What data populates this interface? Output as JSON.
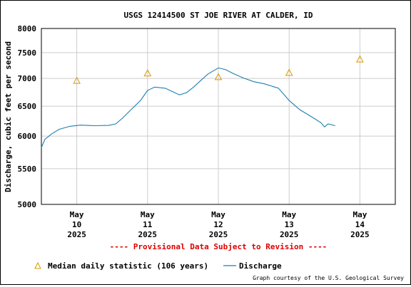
{
  "chart_data": {
    "type": "line",
    "title": "USGS 12414500 ST JOE RIVER AT CALDER, ID",
    "ylabel": "Discharge, cubic feet per second",
    "xlabel": "",
    "ylim": [
      5000,
      8000
    ],
    "yscale": "log",
    "grid": true,
    "y_ticks": [
      {
        "value": 5000,
        "label": "5000"
      },
      {
        "value": 5500,
        "label": "5500"
      },
      {
        "value": 6000,
        "label": "6000"
      },
      {
        "value": 6500,
        "label": "6500"
      },
      {
        "value": 7000,
        "label": "7000"
      },
      {
        "value": 7500,
        "label": "7500"
      },
      {
        "value": 8000,
        "label": "8000"
      }
    ],
    "x_range": [
      "2025-05-09 12:00",
      "2025-05-14 12:00"
    ],
    "x_ticks": [
      {
        "date": "2025-05-10 00:00",
        "lines": [
          "May",
          "10",
          "2025"
        ]
      },
      {
        "date": "2025-05-11 00:00",
        "lines": [
          "May",
          "11",
          "2025"
        ]
      },
      {
        "date": "2025-05-12 00:00",
        "lines": [
          "May",
          "12",
          "2025"
        ]
      },
      {
        "date": "2025-05-13 00:00",
        "lines": [
          "May",
          "13",
          "2025"
        ]
      },
      {
        "date": "2025-05-14 00:00",
        "lines": [
          "May",
          "14",
          "2025"
        ]
      }
    ],
    "series": [
      {
        "name": "Discharge",
        "color": "#1f7fb0",
        "points": [
          [
            "2025-05-09 12:00",
            5820
          ],
          [
            "2025-05-09 13:12",
            5950
          ],
          [
            "2025-05-09 15:36",
            6040
          ],
          [
            "2025-05-09 18:00",
            6110
          ],
          [
            "2025-05-09 21:36",
            6160
          ],
          [
            "2025-05-10 01:12",
            6180
          ],
          [
            "2025-05-10 06:00",
            6170
          ],
          [
            "2025-05-10 10:48",
            6175
          ],
          [
            "2025-05-10 13:12",
            6200
          ],
          [
            "2025-05-10 15:36",
            6300
          ],
          [
            "2025-05-10 18:00",
            6420
          ],
          [
            "2025-05-10 21:36",
            6600
          ],
          [
            "2025-05-11 00:00",
            6780
          ],
          [
            "2025-05-11 02:24",
            6840
          ],
          [
            "2025-05-11 06:00",
            6820
          ],
          [
            "2025-05-11 08:24",
            6760
          ],
          [
            "2025-05-11 10:48",
            6700
          ],
          [
            "2025-05-11 13:12",
            6740
          ],
          [
            "2025-05-11 15:36",
            6840
          ],
          [
            "2025-05-11 18:00",
            6960
          ],
          [
            "2025-05-11 20:24",
            7080
          ],
          [
            "2025-05-11 22:48",
            7160
          ],
          [
            "2025-05-12 00:00",
            7200
          ],
          [
            "2025-05-12 02:24",
            7170
          ],
          [
            "2025-05-12 04:48",
            7100
          ],
          [
            "2025-05-12 08:24",
            7010
          ],
          [
            "2025-05-12 12:00",
            6940
          ],
          [
            "2025-05-12 15:36",
            6900
          ],
          [
            "2025-05-12 20:24",
            6820
          ],
          [
            "2025-05-13 00:00",
            6600
          ],
          [
            "2025-05-13 03:36",
            6440
          ],
          [
            "2025-05-13 07:12",
            6330
          ],
          [
            "2025-05-13 10:48",
            6220
          ],
          [
            "2025-05-13 12:00",
            6150
          ],
          [
            "2025-05-13 13:12",
            6200
          ],
          [
            "2025-05-13 15:36",
            6170
          ]
        ]
      },
      {
        "name": "Median daily statistic (106 years)",
        "marker": "triangle",
        "color": "#d99a00",
        "points": [
          [
            "2025-05-10 00:00",
            6960
          ],
          [
            "2025-05-11 00:00",
            7100
          ],
          [
            "2025-05-12 00:00",
            7030
          ],
          [
            "2025-05-13 00:00",
            7110
          ],
          [
            "2025-05-14 00:00",
            7370
          ]
        ]
      }
    ],
    "legend": {
      "placement": "bottom",
      "entries": [
        "Median daily statistic (106 years)",
        "Discharge"
      ]
    },
    "annotations": [
      "---- Provisional Data Subject to Revision ----",
      "Graph courtesy of the U.S. Geological Survey"
    ]
  }
}
